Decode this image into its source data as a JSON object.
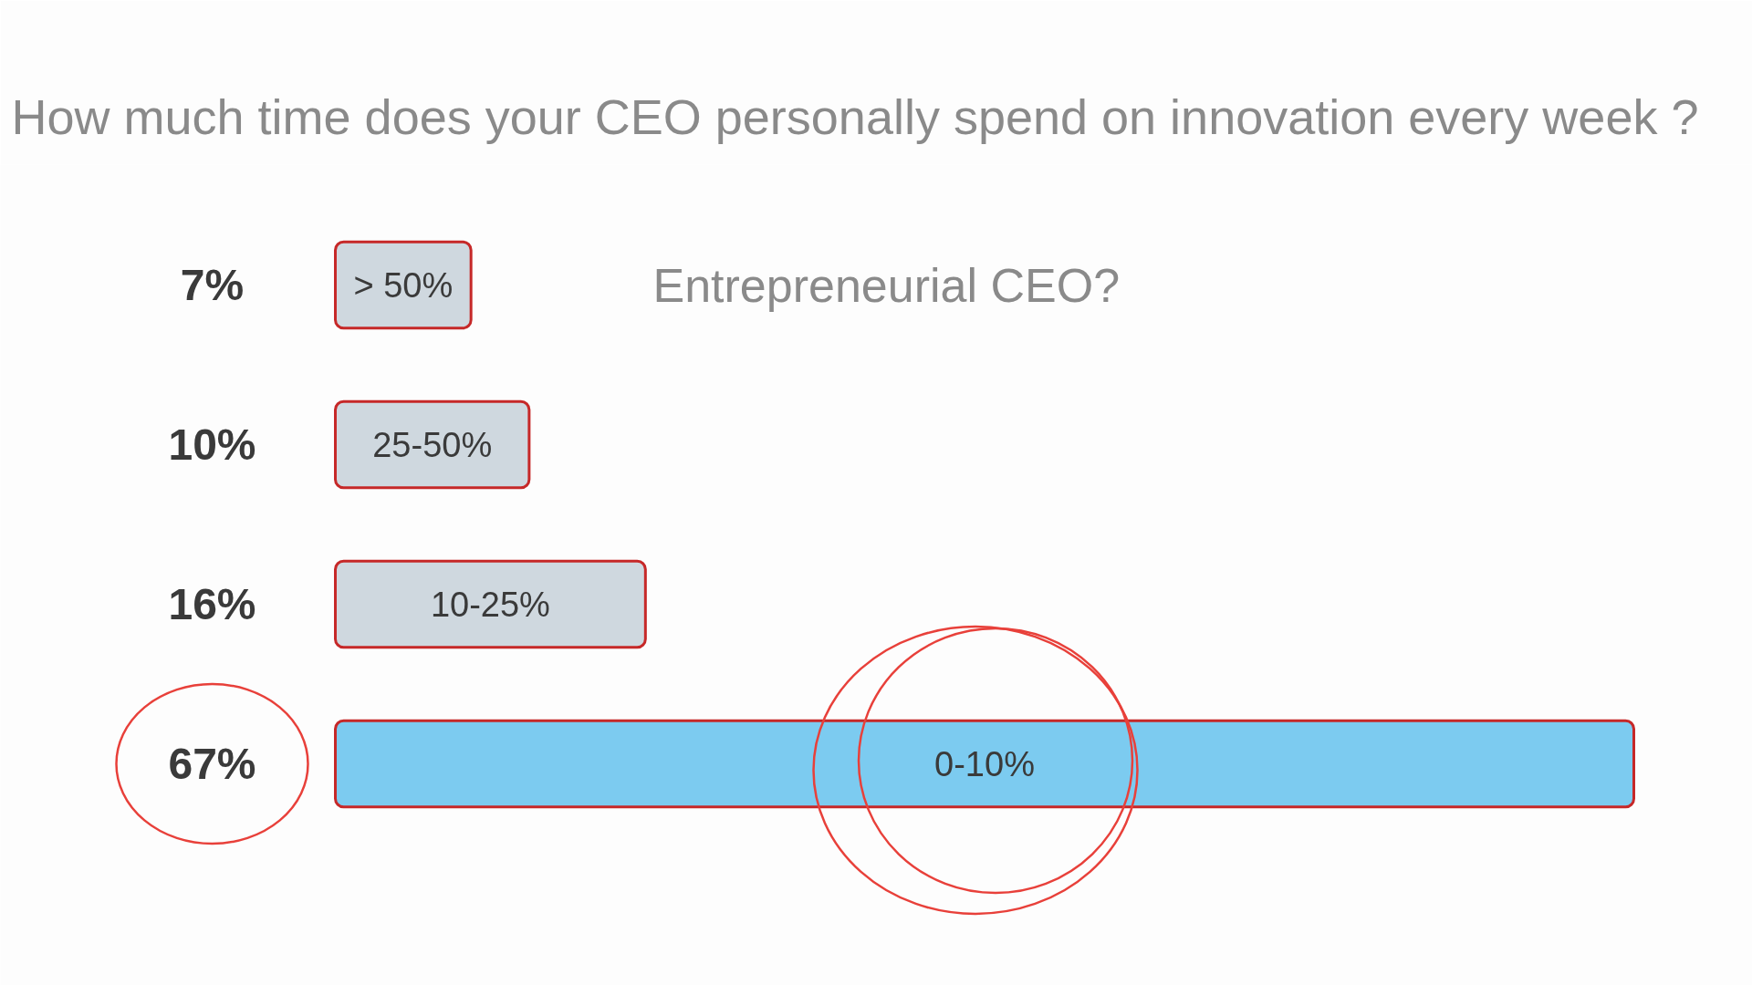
{
  "chart_data": {
    "type": "bar",
    "orientation": "horizontal",
    "title": "How much time does your CEO personally spend on innovation every week ?",
    "categories": [
      "> 50%",
      "25-50%",
      "10-25%",
      "0-10%"
    ],
    "values": [
      7,
      10,
      16,
      67
    ],
    "value_labels": [
      "7%",
      "10%",
      "16%",
      "67%"
    ],
    "colors": [
      "#cfd8df",
      "#cfd8df",
      "#cfd8df",
      "#7ccbf0"
    ],
    "annotations": [
      "Entrepreneurial CEO?"
    ]
  }
}
